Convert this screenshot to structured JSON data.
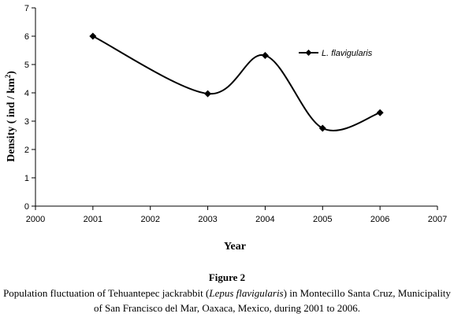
{
  "chart_data": {
    "type": "line",
    "x": [
      2001,
      2003,
      2004,
      2005,
      2006
    ],
    "series": [
      {
        "name": "L. flavigularis",
        "values": [
          6.0,
          3.97,
          5.32,
          2.75,
          3.3
        ]
      }
    ],
    "xlim": [
      2000,
      2007
    ],
    "ylim": [
      0,
      7
    ],
    "xticks": [
      "2000",
      "2001",
      "2002",
      "2003",
      "2004",
      "2005",
      "2006",
      "2007"
    ],
    "yticks": [
      "0",
      "1",
      "2",
      "3",
      "4",
      "5",
      "6",
      "7"
    ],
    "xlabel": "Year",
    "ylabel_main": "Density ( ind / km",
    "ylabel_sup": "2",
    "ylabel_end": ")",
    "legend_position": "top-right",
    "grid": false,
    "line_style": "smoothed",
    "marker": "diamond",
    "line_color": "#000000"
  },
  "figure": {
    "label": "Figure 2",
    "caption_pre": "Population fluctuation of Tehuantepec jackrabbit (",
    "caption_italic": "Lepus flavigularis",
    "caption_post": ") in Montecillo Santa Cruz, Municipality of San Francisco del Mar, Oaxaca, Mexico, during 2001 to 2006."
  }
}
